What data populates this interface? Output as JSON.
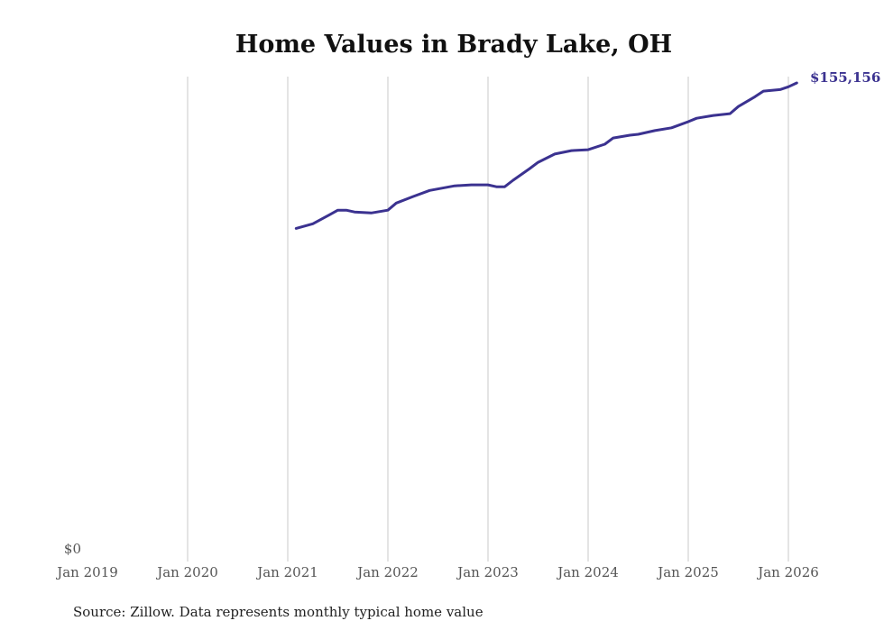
{
  "chart_data": {
    "type": "line",
    "title": "Home Values in Brady Lake, OH",
    "xlabel": "",
    "ylabel": "",
    "x_ticks": [
      "Jan 2019",
      "Jan 2020",
      "Jan 2021",
      "Jan 2022",
      "Jan 2023",
      "Jan 2024",
      "Jan 2025",
      "Jan 2026"
    ],
    "y_ticks": [
      "$0"
    ],
    "ylim": [
      0,
      155156
    ],
    "xlim_months_from_jan_2019": [
      0,
      86
    ],
    "grid": "vertical",
    "color": "#3b3290",
    "end_label": "$155,156",
    "source": "Source: Zillow. Data represents monthly typical home value",
    "series": [
      {
        "name": "Typical home value",
        "points": [
          {
            "m": 25,
            "v": 108000
          },
          {
            "m": 27,
            "v": 109500
          },
          {
            "m": 29,
            "v": 112400
          },
          {
            "m": 30,
            "v": 113900
          },
          {
            "m": 31,
            "v": 113900
          },
          {
            "m": 32,
            "v": 113300
          },
          {
            "m": 34,
            "v": 113000
          },
          {
            "m": 36,
            "v": 113900
          },
          {
            "m": 37,
            "v": 116200
          },
          {
            "m": 39,
            "v": 118300
          },
          {
            "m": 41,
            "v": 120300
          },
          {
            "m": 44,
            "v": 121800
          },
          {
            "m": 46,
            "v": 122100
          },
          {
            "m": 48,
            "v": 122100
          },
          {
            "m": 49,
            "v": 121500
          },
          {
            "m": 50,
            "v": 121500
          },
          {
            "m": 51,
            "v": 123600
          },
          {
            "m": 53,
            "v": 127400
          },
          {
            "m": 54,
            "v": 129400
          },
          {
            "m": 56,
            "v": 132100
          },
          {
            "m": 58,
            "v": 133200
          },
          {
            "m": 60,
            "v": 133500
          },
          {
            "m": 62,
            "v": 135300
          },
          {
            "m": 63,
            "v": 137300
          },
          {
            "m": 65,
            "v": 138200
          },
          {
            "m": 66,
            "v": 138500
          },
          {
            "m": 68,
            "v": 139700
          },
          {
            "m": 70,
            "v": 140600
          },
          {
            "m": 72,
            "v": 142600
          },
          {
            "m": 73,
            "v": 143700
          },
          {
            "m": 75,
            "v": 144600
          },
          {
            "m": 77,
            "v": 145200
          },
          {
            "m": 78,
            "v": 147500
          },
          {
            "m": 80,
            "v": 150700
          },
          {
            "m": 81,
            "v": 152500
          },
          {
            "m": 83,
            "v": 153000
          },
          {
            "m": 84,
            "v": 153900
          },
          {
            "m": 85,
            "v": 155156
          }
        ]
      }
    ]
  }
}
